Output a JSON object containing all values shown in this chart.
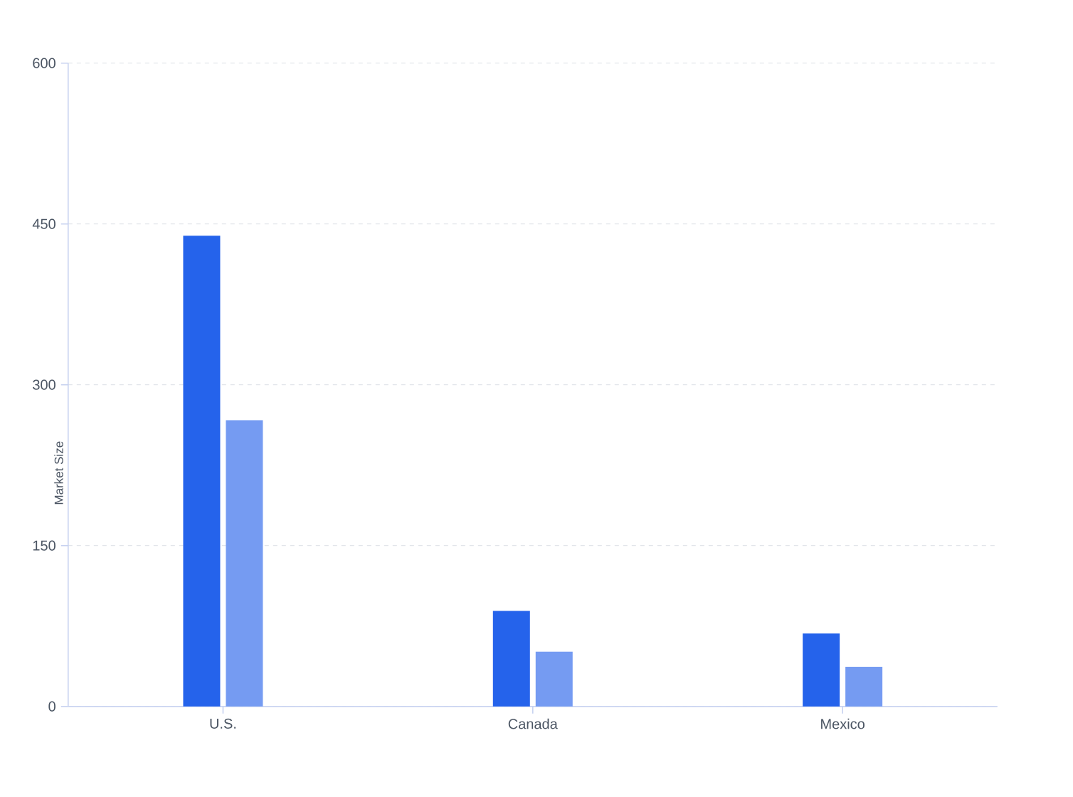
{
  "chart_data": {
    "type": "bar",
    "ylabel": "Market Size",
    "categories": [
      "U.S.",
      "Canada",
      "Mexico"
    ],
    "series": [
      {
        "color": "#2563eb",
        "values": [
          439,
          89,
          68
        ]
      },
      {
        "color": "#759bf2",
        "values": [
          267,
          51,
          37
        ]
      }
    ],
    "ylim": [
      0,
      600
    ],
    "yticks": [
      0,
      150,
      300,
      450,
      600
    ],
    "grid": "y"
  }
}
